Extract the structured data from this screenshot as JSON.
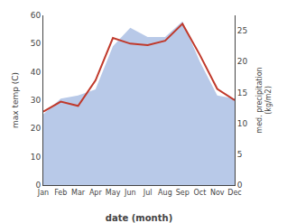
{
  "chart_data": {
    "type": "line",
    "xlabel": "date (month)",
    "ylabel": "max temp (C)",
    "y2label": "med. precipitation\n(kg/m2)",
    "categories": [
      "Jan",
      "Feb",
      "Mar",
      "Apr",
      "May",
      "Jun",
      "Jul",
      "Aug",
      "Sep",
      "Oct",
      "Nov",
      "Dec"
    ],
    "series": [
      {
        "type": "area",
        "color": "#b8c9e8",
        "axis": "y2",
        "values": [
          11.5,
          14.0,
          14.5,
          15.5,
          22.5,
          25.5,
          24.0,
          24.0,
          26.5,
          20.0,
          14.5,
          14.0
        ]
      },
      {
        "type": "line",
        "color": "#c0392b",
        "values": [
          26,
          29.5,
          28,
          37,
          52,
          50,
          49.5,
          51,
          57,
          46,
          34,
          30
        ]
      }
    ],
    "ylim": [
      0,
      60
    ],
    "yticks": [
      0,
      10,
      20,
      30,
      40,
      50,
      60
    ],
    "y2lim": [
      0,
      27.5
    ],
    "y2ticks": [
      0,
      5,
      10,
      15,
      20,
      25
    ],
    "grid": false
  }
}
